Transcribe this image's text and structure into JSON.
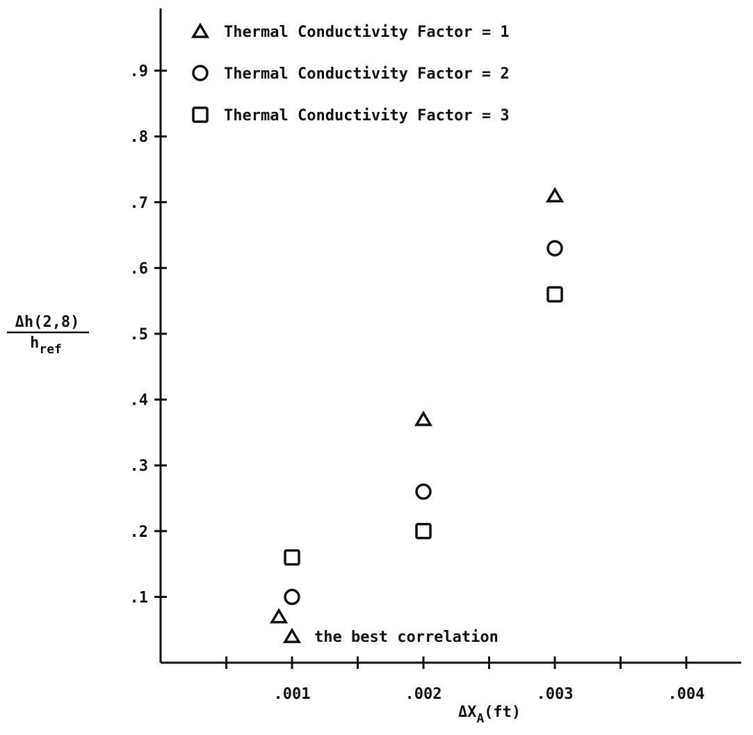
{
  "chart_data": {
    "type": "scatter",
    "title": "",
    "xlabel": {
      "prefix": "ΔX",
      "subscript": "A",
      "suffix": "(ft)"
    },
    "ylabel": {
      "numerator": "Δh(2,8)",
      "denominator_base": "h",
      "denominator_subscript": "ref"
    },
    "xlim": [
      0,
      0.0045
    ],
    "ylim": [
      0,
      1.0
    ],
    "x_ticks": [
      0.0005,
      0.001,
      0.0015,
      0.002,
      0.0025,
      0.003,
      0.0035,
      0.004
    ],
    "x_tick_labels": [
      {
        "value": 0.001,
        "label": ".001"
      },
      {
        "value": 0.002,
        "label": ".002"
      },
      {
        "value": 0.003,
        "label": ".003"
      },
      {
        "value": 0.004,
        "label": ".004"
      }
    ],
    "y_ticks": [
      {
        "value": 0.1,
        "label": ".1"
      },
      {
        "value": 0.2,
        "label": ".2"
      },
      {
        "value": 0.3,
        "label": ".3"
      },
      {
        "value": 0.4,
        "label": ".4"
      },
      {
        "value": 0.5,
        "label": ".5"
      },
      {
        "value": 0.6,
        "label": ".6"
      },
      {
        "value": 0.7,
        "label": ".7"
      },
      {
        "value": 0.8,
        "label": ".8"
      },
      {
        "value": 0.9,
        "label": ".9"
      }
    ],
    "grid": false,
    "legend_position": "top-left",
    "series": [
      {
        "name": "Thermal Conductivity Factor = 1",
        "marker": "triangle",
        "points": [
          {
            "x": 0.0009,
            "y": 0.07
          },
          {
            "x": 0.002,
            "y": 0.37
          },
          {
            "x": 0.003,
            "y": 0.71
          }
        ]
      },
      {
        "name": "Thermal Conductivity Factor = 2",
        "marker": "circle",
        "points": [
          {
            "x": 0.001,
            "y": 0.1
          },
          {
            "x": 0.002,
            "y": 0.26
          },
          {
            "x": 0.003,
            "y": 0.63
          }
        ]
      },
      {
        "name": "Thermal Conductivity Factor = 3",
        "marker": "square",
        "points": [
          {
            "x": 0.001,
            "y": 0.16
          },
          {
            "x": 0.002,
            "y": 0.2
          },
          {
            "x": 0.003,
            "y": 0.56
          }
        ]
      }
    ],
    "annotations": [
      {
        "text": "the best correlation",
        "marker": "triangle",
        "x": 0.001,
        "y": 0.04
      }
    ]
  }
}
